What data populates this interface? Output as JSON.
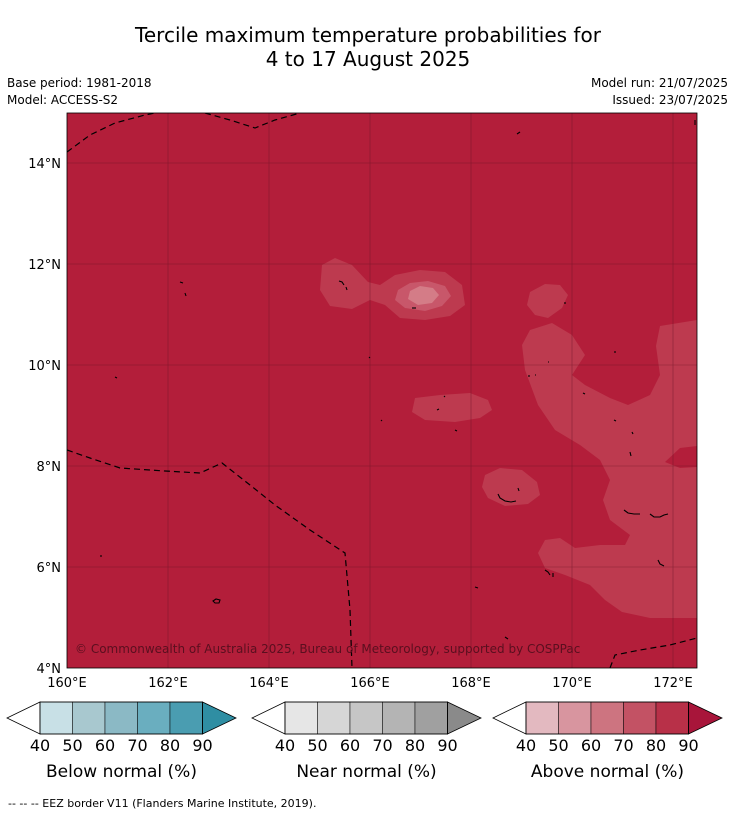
{
  "title_line1": "Tercile maximum temperature probabilities for",
  "title_line2": "4 to 17 August 2025",
  "meta": {
    "base_period": "Base period: 1981-2018",
    "model": "Model: ACCESS-S2",
    "model_run": "Model run: 21/07/2025",
    "issued": "Issued: 23/07/2025"
  },
  "map": {
    "lat_ticks": [
      "14°N",
      "12°N",
      "10°N",
      "8°N",
      "6°N",
      "4°N"
    ],
    "lon_ticks": [
      "160°E",
      "162°E",
      "164°E",
      "166°E",
      "168°E",
      "170°E",
      "172°E"
    ],
    "copyright": "© Commonwealth of Australia 2025, Bureau of Meteorology, supported by COSPPac",
    "colors": {
      "above_90": "#b31e3a",
      "above_80": "#bd3a4f",
      "above_70": "#c8576a",
      "above_60": "#d47c87"
    }
  },
  "legends": [
    {
      "label": "Below normal (%)",
      "ticks": [
        "40",
        "50",
        "60",
        "70",
        "80",
        "90"
      ],
      "colors": [
        "#c8e0e6",
        "#a8c8cf",
        "#8bb9c5",
        "#6aaebf",
        "#4a9db1",
        "#2f8ea3"
      ]
    },
    {
      "label": "Near normal (%)",
      "ticks": [
        "40",
        "50",
        "60",
        "70",
        "80",
        "90"
      ],
      "colors": [
        "#e6e6e6",
        "#d6d6d6",
        "#c6c6c6",
        "#b4b4b4",
        "#a0a0a0",
        "#8a8a8a"
      ]
    },
    {
      "label": "Above normal (%)",
      "ticks": [
        "40",
        "50",
        "60",
        "70",
        "80",
        "90"
      ],
      "colors": [
        "#e3b9c0",
        "#d8959f",
        "#cd7480",
        "#c35264",
        "#b83048",
        "#a8153a"
      ]
    }
  ],
  "footnote": "--  --  -- EEZ border V11 (Flanders Marine Institute, 2019)."
}
